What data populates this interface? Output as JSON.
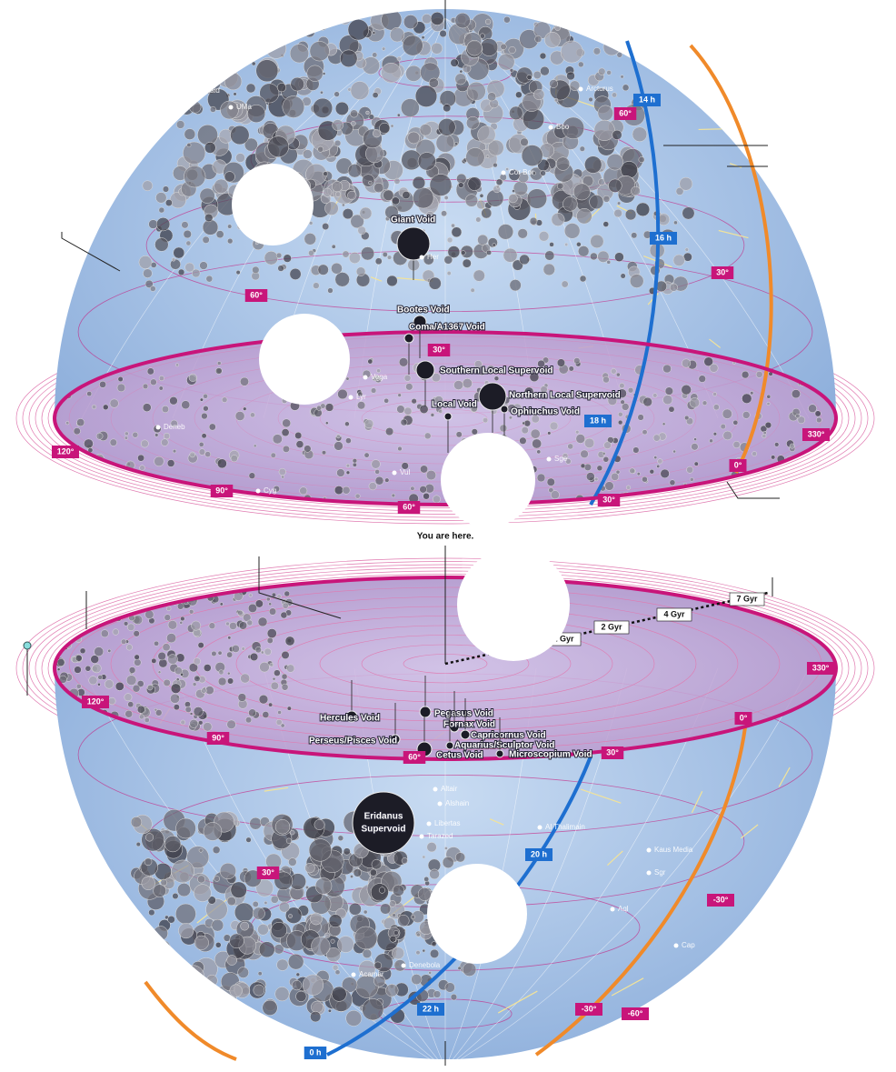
{
  "top_hemisphere": {
    "voids": [
      "Giant Void",
      "Bootes Void",
      "Coma/A1367 Void",
      "Southern Local Supervoid",
      "Northern Local Supervoid",
      "Local Void",
      "Ophiuchus Void"
    ],
    "ra_labels": [
      "14 h",
      "16 h",
      "18 h"
    ],
    "dec_labels": [
      "60°",
      "30°",
      "60°",
      "30°"
    ],
    "rim_labels": [
      "120°",
      "90°",
      "60°",
      "30°",
      "330°",
      "0°"
    ],
    "constellations": [
      "Arcturus",
      "Vega",
      "Lyr",
      "Her",
      "UMa",
      "Cyg",
      "Boo",
      "Cor Bor",
      "Sge",
      "Vul",
      "Alkaid",
      "Deneb"
    ]
  },
  "caption": "You are here.",
  "distance_labels": [
    "1 Gyr",
    "2 Gyr",
    "4 Gyr",
    "7 Gyr"
  ],
  "bottom_hemisphere": {
    "voids": [
      "Hercules Void",
      "Pegasus Void",
      "Fornax Void",
      "Capricornus Void",
      "Perseus/Pisces Void",
      "Aquarius/Sculptor Void",
      "Cetus Void",
      "Microscopium Void"
    ],
    "supervoid": [
      "Eridanus",
      "Supervoid"
    ],
    "ra_labels": [
      "20 h",
      "22 h",
      "0 h"
    ],
    "dec_labels": [
      "30°",
      "-30°",
      "-30°",
      "-60°"
    ],
    "rim_labels": [
      "120°",
      "90°",
      "60°",
      "30°",
      "330°",
      "0°"
    ],
    "constellations": [
      "Altair",
      "Alshain",
      "Tarazed",
      "Peacock",
      "Libertas",
      "Al Thalimain",
      "Cap",
      "Sgr",
      "Aql",
      "Kaus Media",
      "Denebola",
      "Acamar"
    ]
  }
}
